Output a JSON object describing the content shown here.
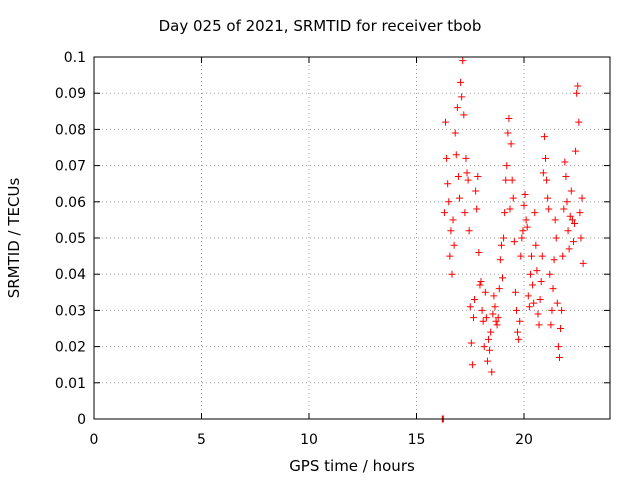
{
  "chart_data": {
    "type": "scatter",
    "title": "Day 025 of 2021, SRMTID for receiver tbob",
    "xlabel": "GPS time / hours",
    "ylabel": "SRMTID / TECUs",
    "xlim": [
      0,
      24
    ],
    "ylim": [
      0,
      0.1
    ],
    "xticks": [
      0,
      5,
      10,
      15,
      20
    ],
    "xtick_labels": [
      "0",
      "5",
      "10",
      "15",
      "20"
    ],
    "yticks": [
      0,
      0.01,
      0.02,
      0.03,
      0.04,
      0.05,
      0.06,
      0.07,
      0.08,
      0.09,
      0.1
    ],
    "ytick_labels": [
      "0",
      "0.01",
      "0.02",
      "0.03",
      "0.04",
      "0.05",
      "0.06",
      "0.07",
      "0.08",
      "0.09",
      "0.1"
    ],
    "grid": true,
    "marker": "+",
    "color": "#ff0000",
    "series": [
      {
        "name": "SRMTID",
        "points": [
          [
            16.2,
            0.0
          ],
          [
            16.22,
            0.0
          ],
          [
            16.25,
            0.0
          ],
          [
            16.3,
            0.057
          ],
          [
            16.35,
            0.082
          ],
          [
            16.4,
            0.072
          ],
          [
            16.45,
            0.065
          ],
          [
            16.5,
            0.06
          ],
          [
            16.55,
            0.045
          ],
          [
            16.6,
            0.052
          ],
          [
            16.65,
            0.04
          ],
          [
            16.7,
            0.055
          ],
          [
            16.75,
            0.048
          ],
          [
            16.8,
            0.079
          ],
          [
            16.85,
            0.073
          ],
          [
            16.9,
            0.086
          ],
          [
            16.95,
            0.067
          ],
          [
            17.0,
            0.061
          ],
          [
            17.05,
            0.093
          ],
          [
            17.1,
            0.089
          ],
          [
            17.15,
            0.099
          ],
          [
            17.2,
            0.084
          ],
          [
            17.25,
            0.057
          ],
          [
            17.3,
            0.072
          ],
          [
            17.35,
            0.068
          ],
          [
            17.4,
            0.066
          ],
          [
            17.45,
            0.052
          ],
          [
            17.5,
            0.031
          ],
          [
            17.55,
            0.021
          ],
          [
            17.6,
            0.015
          ],
          [
            17.65,
            0.028
          ],
          [
            17.7,
            0.033
          ],
          [
            17.75,
            0.063
          ],
          [
            17.8,
            0.058
          ],
          [
            17.85,
            0.067
          ],
          [
            17.9,
            0.046
          ],
          [
            17.95,
            0.037
          ],
          [
            18.0,
            0.038
          ],
          [
            18.05,
            0.03
          ],
          [
            18.1,
            0.027
          ],
          [
            18.15,
            0.02
          ],
          [
            18.2,
            0.035
          ],
          [
            18.25,
            0.028
          ],
          [
            18.3,
            0.016
          ],
          [
            18.35,
            0.022
          ],
          [
            18.4,
            0.019
          ],
          [
            18.45,
            0.024
          ],
          [
            18.5,
            0.013
          ],
          [
            18.55,
            0.029
          ],
          [
            18.6,
            0.034
          ],
          [
            18.65,
            0.031
          ],
          [
            18.7,
            0.027
          ],
          [
            18.75,
            0.026
          ],
          [
            18.8,
            0.028
          ],
          [
            18.85,
            0.036
          ],
          [
            18.9,
            0.044
          ],
          [
            18.95,
            0.048
          ],
          [
            19.0,
            0.039
          ],
          [
            19.05,
            0.05
          ],
          [
            19.1,
            0.057
          ],
          [
            19.15,
            0.066
          ],
          [
            19.2,
            0.07
          ],
          [
            19.25,
            0.079
          ],
          [
            19.3,
            0.083
          ],
          [
            19.35,
            0.058
          ],
          [
            19.4,
            0.076
          ],
          [
            19.45,
            0.066
          ],
          [
            19.5,
            0.061
          ],
          [
            19.55,
            0.049
          ],
          [
            19.6,
            0.035
          ],
          [
            19.65,
            0.03
          ],
          [
            19.7,
            0.024
          ],
          [
            19.75,
            0.022
          ],
          [
            19.8,
            0.027
          ],
          [
            19.85,
            0.045
          ],
          [
            19.9,
            0.05
          ],
          [
            19.95,
            0.052
          ],
          [
            20.0,
            0.059
          ],
          [
            20.05,
            0.062
          ],
          [
            20.1,
            0.055
          ],
          [
            20.15,
            0.053
          ],
          [
            20.2,
            0.034
          ],
          [
            20.25,
            0.031
          ],
          [
            20.3,
            0.04
          ],
          [
            20.35,
            0.045
          ],
          [
            20.4,
            0.037
          ],
          [
            20.45,
            0.032
          ],
          [
            20.5,
            0.057
          ],
          [
            20.55,
            0.048
          ],
          [
            20.6,
            0.041
          ],
          [
            20.65,
            0.029
          ],
          [
            20.7,
            0.026
          ],
          [
            20.75,
            0.033
          ],
          [
            20.8,
            0.038
          ],
          [
            20.85,
            0.045
          ],
          [
            20.9,
            0.068
          ],
          [
            20.95,
            0.078
          ],
          [
            21.0,
            0.072
          ],
          [
            21.05,
            0.066
          ],
          [
            21.1,
            0.061
          ],
          [
            21.15,
            0.058
          ],
          [
            21.2,
            0.04
          ],
          [
            21.25,
            0.026
          ],
          [
            21.3,
            0.03
          ],
          [
            21.35,
            0.036
          ],
          [
            21.4,
            0.044
          ],
          [
            21.45,
            0.055
          ],
          [
            21.5,
            0.05
          ],
          [
            21.55,
            0.032
          ],
          [
            21.6,
            0.02
          ],
          [
            21.65,
            0.017
          ],
          [
            21.7,
            0.025
          ],
          [
            21.75,
            0.03
          ],
          [
            21.8,
            0.045
          ],
          [
            21.85,
            0.058
          ],
          [
            21.9,
            0.071
          ],
          [
            21.95,
            0.067
          ],
          [
            22.0,
            0.06
          ],
          [
            22.05,
            0.052
          ],
          [
            22.1,
            0.047
          ],
          [
            22.15,
            0.056
          ],
          [
            22.2,
            0.063
          ],
          [
            22.25,
            0.055
          ],
          [
            22.3,
            0.049
          ],
          [
            22.35,
            0.054
          ],
          [
            22.4,
            0.074
          ],
          [
            22.45,
            0.09
          ],
          [
            22.5,
            0.092
          ],
          [
            22.55,
            0.082
          ],
          [
            22.6,
            0.057
          ],
          [
            22.65,
            0.05
          ],
          [
            22.7,
            0.061
          ],
          [
            22.75,
            0.043
          ]
        ]
      }
    ]
  }
}
